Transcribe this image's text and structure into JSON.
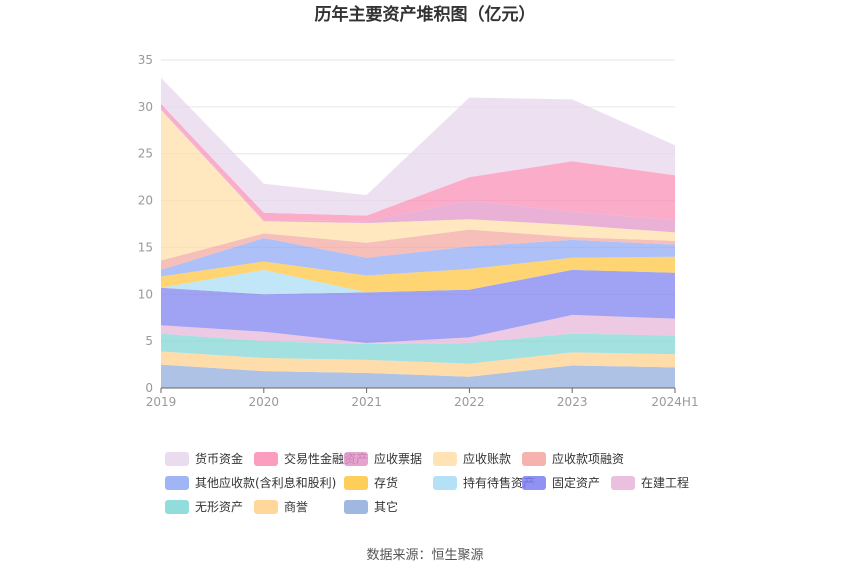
{
  "chart_data": {
    "type": "area",
    "stacked": true,
    "title": "历年主要资产堆积图（亿元）",
    "x": [
      "2019",
      "2020",
      "2021",
      "2022",
      "2023",
      "2024H1"
    ],
    "ylim": [
      0,
      35
    ],
    "yticks": [
      0,
      5,
      10,
      15,
      20,
      25,
      30,
      35
    ],
    "grid": true,
    "legend_position": "bottom",
    "series": [
      {
        "name": "其它",
        "color": "#8faadc",
        "values": [
          2.5,
          1.8,
          1.6,
          1.2,
          2.4,
          2.2
        ]
      },
      {
        "name": "商誉",
        "color": "#ffd08a",
        "values": [
          1.4,
          1.4,
          1.4,
          1.4,
          1.4,
          1.4
        ]
      },
      {
        "name": "无形资产",
        "color": "#7fd6d6",
        "values": [
          1.9,
          1.8,
          1.7,
          2.2,
          2.0,
          2.0
        ]
      },
      {
        "name": "在建工程",
        "color": "#e8b4d8",
        "values": [
          0.9,
          1.0,
          0.1,
          0.6,
          2.0,
          1.8
        ]
      },
      {
        "name": "固定资产",
        "color": "#7b7ff0",
        "values": [
          4.0,
          4.0,
          5.4,
          5.1,
          4.8,
          4.9
        ]
      },
      {
        "name": "持有待售资产",
        "color": "#a8dcf5",
        "values": [
          0.0,
          2.6,
          0.0,
          0.0,
          0.0,
          0.0
        ]
      },
      {
        "name": "存货",
        "color": "#ffc53d",
        "values": [
          1.2,
          0.9,
          1.8,
          2.2,
          1.3,
          1.7
        ]
      },
      {
        "name": "其他应收款(含利息和股利)",
        "color": "#8ea8f5",
        "values": [
          0.7,
          2.5,
          1.9,
          2.4,
          1.9,
          1.3
        ]
      },
      {
        "name": "应收款项融资",
        "color": "#f4a6a0",
        "values": [
          1.0,
          0.5,
          1.6,
          1.8,
          0.3,
          0.4
        ]
      },
      {
        "name": "应收账款",
        "color": "#ffdea8",
        "values": [
          16.1,
          1.3,
          2.1,
          1.1,
          1.3,
          0.9
        ]
      },
      {
        "name": "应收票据",
        "color": "#e293c8",
        "values": [
          0.2,
          0.1,
          0.2,
          2.0,
          1.4,
          1.3
        ]
      },
      {
        "name": "交易性金融资产",
        "color": "#f98cb4",
        "values": [
          0.4,
          0.8,
          0.6,
          2.5,
          5.4,
          4.8
        ]
      },
      {
        "name": "货币资金",
        "color": "#e6d6ec",
        "values": [
          2.8,
          3.1,
          2.2,
          8.5,
          6.6,
          3.2
        ]
      }
    ],
    "legend_order": [
      "货币资金",
      "交易性金融资产",
      "应收票据",
      "应收账款",
      "应收款项融资",
      "其他应收款(含利息和股利)",
      "存货",
      "持有待售资产",
      "固定资产",
      "在建工程",
      "无形资产",
      "商誉",
      "其它"
    ]
  },
  "source_text": "数据来源：恒生聚源"
}
